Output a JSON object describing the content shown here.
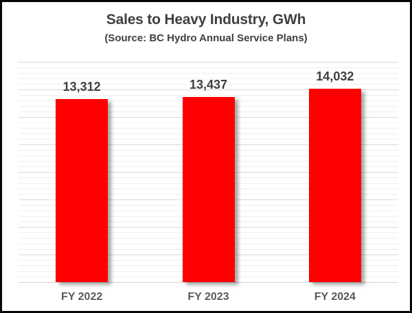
{
  "window": {
    "background": "#ffffff",
    "border_color": "#050505"
  },
  "header": {
    "title": "Sales to Heavy Industry, GWh",
    "subtitle": "(Source: BC Hydro Annual Service Plans)"
  },
  "chart_data": {
    "type": "bar",
    "title": "Sales to Heavy Industry, GWh",
    "subtitle": "(Source: BC Hydro Annual Service Plans)",
    "categories": [
      "FY 2022",
      "FY 2023",
      "FY 2024"
    ],
    "values": [
      13312,
      13437,
      14032
    ],
    "data_labels": [
      "13,312",
      "13,437",
      "14,032"
    ],
    "xlabel": "",
    "ylabel": "",
    "ylim": [
      0,
      16000
    ],
    "gridlines": {
      "horizontal": true,
      "minor_step": 400,
      "major_step": 2000,
      "y_tick_labels_visible": false
    },
    "legend_position": "none",
    "bar_color": "#FF0000",
    "title_color": "#3f3f3f",
    "data_label_color": "#3f3f3f",
    "axis_label_color": "#595959"
  }
}
